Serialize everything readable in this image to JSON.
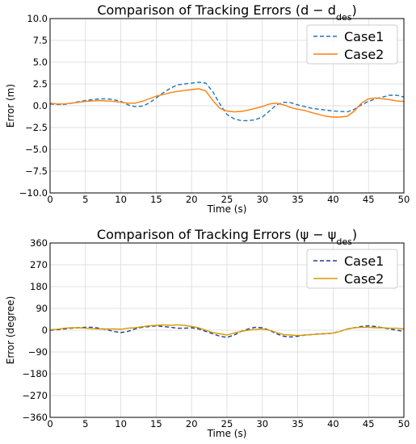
{
  "chart_data": [
    {
      "type": "line",
      "title": "Comparison of Tracking Errors (d − d",
      "title_sub": "des",
      "title_close": ")",
      "xlabel": "Time (s)",
      "ylabel": "Error (m)",
      "xlim": [
        0,
        50
      ],
      "ylim": [
        -10,
        10
      ],
      "xticks": [
        "0",
        "5",
        "10",
        "15",
        "20",
        "25",
        "30",
        "35",
        "40",
        "45",
        "50"
      ],
      "yticks": [
        "−10.0",
        "−7.5",
        "−5.0",
        "−2.5",
        "0.0",
        "2.5",
        "5.0",
        "7.5",
        "10.0"
      ],
      "grid": true,
      "legend_position": "top-right",
      "series": [
        {
          "name": "Case1",
          "color": "#1f77b4",
          "dash": "dashed",
          "x": [
            0,
            1,
            2,
            3,
            4,
            5,
            6,
            7,
            8,
            9,
            10,
            11,
            12,
            13,
            14,
            15,
            16,
            17,
            18,
            19,
            20,
            21,
            22,
            23,
            24,
            25,
            26,
            27,
            28,
            29,
            30,
            31,
            32,
            33,
            34,
            35,
            36,
            37,
            38,
            39,
            40,
            41,
            42,
            43,
            44,
            45,
            46,
            47,
            48,
            49,
            50
          ],
          "y": [
            0.2,
            0.15,
            0.15,
            0.3,
            0.45,
            0.6,
            0.7,
            0.8,
            0.8,
            0.7,
            0.5,
            0.1,
            -0.1,
            -0.05,
            0.3,
            0.9,
            1.5,
            2.0,
            2.4,
            2.5,
            2.6,
            2.7,
            2.6,
            1.6,
            0.2,
            -1.0,
            -1.5,
            -1.7,
            -1.7,
            -1.6,
            -1.3,
            -0.6,
            0.1,
            0.4,
            0.35,
            0.1,
            -0.1,
            -0.3,
            -0.4,
            -0.5,
            -0.6,
            -0.65,
            -0.7,
            -0.4,
            0.1,
            0.5,
            0.8,
            1.0,
            1.2,
            1.2,
            1.0
          ]
        },
        {
          "name": "Case2",
          "color": "#ff7f0e",
          "dash": "solid",
          "x": [
            0,
            1,
            2,
            3,
            4,
            5,
            6,
            7,
            8,
            9,
            10,
            11,
            12,
            13,
            14,
            15,
            16,
            17,
            18,
            19,
            20,
            21,
            22,
            23,
            24,
            25,
            26,
            27,
            28,
            29,
            30,
            31,
            32,
            33,
            34,
            35,
            36,
            37,
            38,
            39,
            40,
            41,
            42,
            43,
            44,
            45,
            46,
            47,
            48,
            49,
            50
          ],
          "y": [
            0.3,
            0.2,
            0.2,
            0.3,
            0.4,
            0.5,
            0.55,
            0.6,
            0.55,
            0.5,
            0.4,
            0.3,
            0.3,
            0.5,
            0.8,
            1.1,
            1.3,
            1.5,
            1.65,
            1.75,
            1.85,
            1.95,
            1.7,
            0.6,
            -0.3,
            -0.6,
            -0.7,
            -0.65,
            -0.5,
            -0.3,
            -0.1,
            0.2,
            0.3,
            0.1,
            -0.2,
            -0.4,
            -0.55,
            -0.8,
            -1.0,
            -1.2,
            -1.3,
            -1.3,
            -1.2,
            -0.6,
            0.3,
            0.8,
            0.9,
            0.8,
            0.7,
            0.55,
            0.5
          ]
        }
      ]
    },
    {
      "type": "line",
      "title": "Comparison of Tracking Errors (ψ − ψ",
      "title_sub": "des",
      "title_close": ")",
      "xlabel": "Time (s)",
      "ylabel": "Error (degree)",
      "xlim": [
        0,
        50
      ],
      "ylim": [
        -360,
        360
      ],
      "xticks": [
        "0",
        "5",
        "10",
        "15",
        "20",
        "25",
        "30",
        "35",
        "40",
        "45",
        "50"
      ],
      "yticks": [
        "−360",
        "−270",
        "−180",
        "−90",
        "0",
        "90",
        "180",
        "270",
        "360"
      ],
      "grid": true,
      "legend_position": "top-right",
      "series": [
        {
          "name": "Case1",
          "color": "#1f3d99",
          "dash": "dashed",
          "x": [
            0,
            1,
            2,
            3,
            4,
            5,
            6,
            7,
            8,
            9,
            10,
            11,
            12,
            13,
            14,
            15,
            16,
            17,
            18,
            19,
            20,
            21,
            22,
            23,
            24,
            25,
            26,
            27,
            28,
            29,
            30,
            31,
            32,
            33,
            34,
            35,
            36,
            37,
            38,
            39,
            40,
            41,
            42,
            43,
            44,
            45,
            46,
            47,
            48,
            49,
            50
          ],
          "y": [
            0,
            2,
            5,
            8,
            10,
            12,
            12,
            8,
            2,
            -5,
            -10,
            -5,
            5,
            12,
            15,
            18,
            15,
            12,
            8,
            8,
            10,
            5,
            -5,
            -15,
            -25,
            -30,
            -20,
            -5,
            5,
            12,
            10,
            0,
            -15,
            -25,
            -28,
            -25,
            -20,
            -18,
            -15,
            -15,
            -12,
            -5,
            5,
            10,
            15,
            18,
            15,
            10,
            5,
            0,
            -5
          ]
        },
        {
          "name": "Case2",
          "color": "#d89a00",
          "dash": "solid",
          "x": [
            0,
            1,
            2,
            3,
            4,
            5,
            6,
            7,
            8,
            9,
            10,
            11,
            12,
            13,
            14,
            15,
            16,
            17,
            18,
            19,
            20,
            21,
            22,
            23,
            24,
            25,
            26,
            27,
            28,
            29,
            30,
            31,
            32,
            33,
            34,
            35,
            36,
            37,
            38,
            39,
            40,
            41,
            42,
            43,
            44,
            45,
            46,
            47,
            48,
            49,
            50
          ],
          "y": [
            2,
            4,
            8,
            10,
            10,
            8,
            6,
            5,
            5,
            5,
            4,
            8,
            10,
            14,
            18,
            20,
            22,
            20,
            22,
            20,
            15,
            10,
            0,
            -10,
            -15,
            -20,
            -12,
            -5,
            0,
            3,
            5,
            0,
            -10,
            -18,
            -20,
            -22,
            -20,
            -18,
            -16,
            -14,
            -12,
            -5,
            5,
            10,
            12,
            12,
            10,
            10,
            8,
            8,
            5
          ]
        }
      ]
    }
  ]
}
